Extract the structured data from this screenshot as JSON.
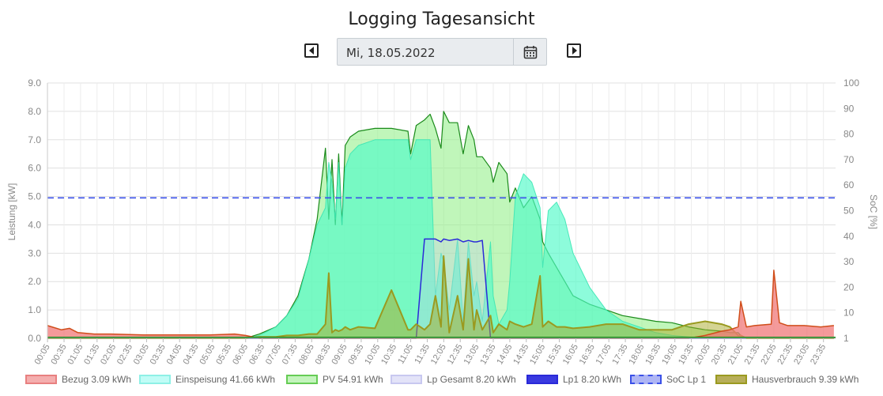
{
  "page": {
    "title": "Logging Tagesansicht",
    "date_value": "Mi, 18.05.2022",
    "prev_icon": "caret-left-icon",
    "next_icon": "caret-right-icon",
    "calendar_icon": "calendar-icon"
  },
  "chart_data": {
    "type": "area",
    "ylabel": "Leistung [kW]",
    "y2label": "SoC [%]",
    "ylim": [
      0,
      9
    ],
    "y2lim": [
      0,
      100
    ],
    "y_ticks": [
      "0.0",
      "1.0",
      "2.0",
      "3.0",
      "4.0",
      "5.0",
      "6.0",
      "7.0",
      "8.0",
      "9.0"
    ],
    "y2_ticks": [
      "1",
      "10",
      "20",
      "30",
      "40",
      "50",
      "60",
      "70",
      "80",
      "90",
      "100"
    ],
    "x_ticks": [
      "00:05",
      "00:35",
      "01:05",
      "01:35",
      "02:05",
      "02:35",
      "03:05",
      "03:35",
      "04:05",
      "04:35",
      "05:05",
      "05:35",
      "06:05",
      "06:35",
      "07:05",
      "07:35",
      "08:05",
      "08:35",
      "09:05",
      "09:35",
      "10:05",
      "10:35",
      "11:05",
      "11:35",
      "12:05",
      "12:35",
      "13:05",
      "13:35",
      "14:05",
      "14:35",
      "15:05",
      "15:35",
      "16:05",
      "16:35",
      "17:05",
      "17:35",
      "18:05",
      "18:35",
      "19:05",
      "19:35",
      "20:05",
      "20:35",
      "21:05",
      "21:35",
      "22:05",
      "22:35",
      "23:05",
      "23:35"
    ],
    "grid": true,
    "legend_position": "bottom",
    "time_hours": [
      0.08,
      0.5,
      0.75,
      1.0,
      1.5,
      2.0,
      3.0,
      4.0,
      5.0,
      5.75,
      6.08,
      6.5,
      7.0,
      7.33,
      7.67,
      8.0,
      8.25,
      8.5,
      8.6,
      8.7,
      8.8,
      8.9,
      9.0,
      9.1,
      9.25,
      9.5,
      10.0,
      10.5,
      11.0,
      11.08,
      11.25,
      11.5,
      11.67,
      11.83,
      12.0,
      12.08,
      12.25,
      12.5,
      12.67,
      12.83,
      13.0,
      13.08,
      13.25,
      13.5,
      13.58,
      13.75,
      14.0,
      14.08,
      14.25,
      14.5,
      14.75,
      15.0,
      15.08,
      15.25,
      15.5,
      15.75,
      16.0,
      16.5,
      17.0,
      17.5,
      18.0,
      18.5,
      19.0,
      19.5,
      20.0,
      20.5,
      20.75,
      21.0,
      21.08,
      21.25,
      21.5,
      22.0,
      22.08,
      22.25,
      22.5,
      23.0,
      23.5,
      23.9
    ],
    "series": [
      {
        "name": "Bezug 3.09 kWh",
        "color": "#e8474b",
        "values": [
          0.45,
          0.3,
          0.35,
          0.2,
          0.15,
          0.15,
          0.12,
          0.12,
          0.12,
          0.15,
          0.1,
          0,
          0,
          0,
          0,
          0,
          0,
          0,
          0,
          0,
          0,
          0,
          0,
          0,
          0,
          0,
          0,
          0,
          0,
          0,
          0,
          0,
          0,
          0,
          0,
          0,
          0,
          0,
          0,
          0,
          0,
          0,
          0,
          0,
          0,
          0,
          0,
          0,
          0,
          0,
          0,
          0,
          0,
          0,
          0,
          0,
          0,
          0,
          0,
          0,
          0,
          0,
          0,
          0,
          0.1,
          0.25,
          0.3,
          0.4,
          1.3,
          0.4,
          0.45,
          0.5,
          2.4,
          0.55,
          0.45,
          0.45,
          0.4,
          0.45
        ]
      },
      {
        "name": "Einspeisung 41.66 kWh",
        "color": "#5ff5c8",
        "values": [
          0,
          0,
          0,
          0,
          0,
          0,
          0,
          0,
          0,
          0,
          0,
          0.1,
          0.4,
          0.8,
          1.4,
          2.8,
          4.0,
          4.6,
          6.2,
          5.5,
          4.2,
          6.2,
          4.0,
          6.0,
          6.5,
          6.8,
          7.0,
          7.0,
          7.0,
          6.3,
          7.0,
          7.0,
          7.0,
          1.5,
          3.0,
          2.7,
          1.0,
          3.5,
          0.6,
          3.4,
          1.5,
          2.0,
          0.6,
          3.4,
          1.5,
          0.5,
          1.0,
          2.0,
          5.0,
          5.8,
          5.5,
          4.6,
          2.5,
          4.5,
          4.8,
          4.2,
          3.0,
          1.8,
          1.0,
          0.6,
          0.4,
          0.2,
          0.1,
          0.05,
          0,
          0,
          0,
          0,
          0,
          0,
          0,
          0,
          0,
          0,
          0,
          0,
          0,
          0
        ]
      },
      {
        "name": "PV 54.91 kWh",
        "color": "#1a8a1a",
        "values": [
          0,
          0,
          0,
          0,
          0,
          0,
          0,
          0,
          0,
          0,
          0,
          0.15,
          0.4,
          0.8,
          1.5,
          2.8,
          4.2,
          6.7,
          4.2,
          6.3,
          4.0,
          6.5,
          4.0,
          6.8,
          7.1,
          7.3,
          7.4,
          7.4,
          7.3,
          6.5,
          7.5,
          7.7,
          7.9,
          7.4,
          6.7,
          8.0,
          7.6,
          7.6,
          6.5,
          7.5,
          7.0,
          6.4,
          6.4,
          6.0,
          5.5,
          6.2,
          5.8,
          4.8,
          5.3,
          4.6,
          5.0,
          4.2,
          3.4,
          3.0,
          2.5,
          2.0,
          1.5,
          1.2,
          1.0,
          0.8,
          0.7,
          0.6,
          0.55,
          0.4,
          0.3,
          0.25,
          0.2,
          0.2,
          0.1,
          0,
          0,
          0,
          0,
          0,
          0,
          0,
          0,
          0
        ]
      },
      {
        "name": "Lp Gesamt 8.20 kWh",
        "color": "#c8c8f0",
        "values": [
          0,
          0,
          0,
          0,
          0,
          0,
          0,
          0,
          0,
          0,
          0,
          0,
          0,
          0,
          0,
          0,
          0,
          0,
          0,
          0,
          0,
          0,
          0,
          0,
          0,
          0,
          0,
          0,
          0,
          0,
          0,
          3.5,
          3.5,
          3.5,
          3.4,
          3.5,
          3.45,
          3.5,
          3.4,
          3.45,
          3.4,
          3.4,
          3.45,
          0,
          0,
          0,
          0,
          0,
          0,
          0,
          0,
          0,
          0,
          0,
          0,
          0,
          0,
          0,
          0,
          0,
          0,
          0,
          0,
          0,
          0,
          0,
          0,
          0,
          0,
          0,
          0,
          0,
          0,
          0,
          0,
          0,
          0,
          0
        ]
      },
      {
        "name": "Lp1 8.20 kWh",
        "color": "#2a2ad8",
        "values": [
          0,
          0,
          0,
          0,
          0,
          0,
          0,
          0,
          0,
          0,
          0,
          0,
          0,
          0,
          0,
          0,
          0,
          0,
          0,
          0,
          0,
          0,
          0,
          0,
          0,
          0,
          0,
          0,
          0,
          0,
          0,
          3.5,
          3.5,
          3.5,
          3.4,
          3.5,
          3.45,
          3.5,
          3.4,
          3.45,
          3.4,
          3.4,
          3.45,
          0,
          0,
          0,
          0,
          0,
          0,
          0,
          0,
          0,
          0,
          0,
          0,
          0,
          0,
          0,
          0,
          0,
          0,
          0,
          0,
          0,
          0,
          0,
          0,
          0,
          0,
          0,
          0,
          0,
          0,
          0,
          0,
          0,
          0,
          0
        ]
      },
      {
        "name": "SoC Lp 1",
        "color": "#3a50e8",
        "axis": "right",
        "dashed": true,
        "constant_value": 55
      },
      {
        "name": "Hausverbrauch 9.39 kWh",
        "color": "#9a9a20",
        "values": [
          0,
          0,
          0,
          0,
          0,
          0,
          0,
          0,
          0,
          0,
          0,
          0.05,
          0.05,
          0.1,
          0.1,
          0.15,
          0.15,
          0.5,
          2.3,
          0.2,
          0.3,
          0.25,
          0.3,
          0.4,
          0.3,
          0.4,
          0.35,
          1.7,
          0.3,
          0.3,
          0.5,
          0.3,
          0.5,
          1.5,
          0.4,
          2.9,
          0.2,
          1.5,
          0.3,
          2.8,
          0.3,
          1.0,
          0.3,
          0.8,
          0.2,
          0.5,
          0.3,
          0.6,
          0.5,
          0.4,
          0.5,
          2.2,
          0.4,
          0.6,
          0.4,
          0.4,
          0.35,
          0.4,
          0.5,
          0.5,
          0.3,
          0.3,
          0.3,
          0.5,
          0.6,
          0.5,
          0.4,
          0.1,
          0.1,
          0,
          0,
          0,
          0,
          0,
          0,
          0,
          0,
          0
        ]
      }
    ]
  }
}
